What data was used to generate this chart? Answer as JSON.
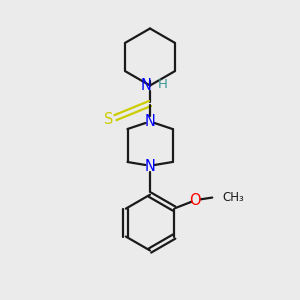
{
  "background_color": "#ebebeb",
  "bond_color": "#1a1a1a",
  "N_color": "#0000ff",
  "S_color": "#cccc00",
  "O_color": "#ff0000",
  "H_color": "#3d9999",
  "line_width": 1.6,
  "fig_width": 3.0,
  "fig_height": 3.0,
  "dpi": 100,
  "xlim": [
    0,
    10
  ],
  "ylim": [
    0,
    10
  ]
}
